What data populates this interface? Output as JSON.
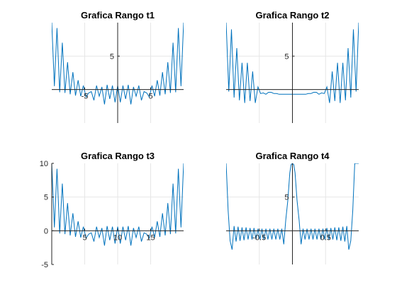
{
  "chart_data": [
    {
      "type": "line",
      "title": "Grafica Rango t1",
      "xlim": [
        -10,
        10
      ],
      "ylim": [
        -5,
        10
      ],
      "axes_through_origin": true,
      "x_ticks": [
        -5,
        5
      ],
      "y_ticks": [
        5
      ],
      "grid": true,
      "series_color": "#0072BD",
      "series": [
        {
          "x": [
            -10,
            -9.6,
            -9.2,
            -8.8,
            -8.4,
            -8.0,
            -7.6,
            -7.2,
            -6.8,
            -6.4,
            -6.0,
            -5.6,
            -5.2,
            -4.8,
            -4.4,
            -4.0,
            -3.6,
            -3.2,
            -2.8,
            -2.4,
            -2.0,
            -1.6,
            -1.2,
            -0.8,
            -0.4,
            0,
            0.4,
            0.8,
            1.2,
            1.6,
            2.0,
            2.4,
            2.8,
            3.2,
            3.6,
            4.0,
            4.4,
            4.8,
            5.2,
            5.6,
            6.0,
            6.4,
            6.8,
            7.2,
            7.6,
            8.0,
            8.4,
            8.8,
            9.2,
            9.6,
            10
          ],
          "y": [
            10,
            0.5,
            9.2,
            -0.4,
            7.0,
            -0.5,
            4.1,
            -0.7,
            2.6,
            -0.9,
            1.4,
            -1.0,
            0.6,
            -1.1,
            -0.5,
            -0.3,
            -1.6,
            0.6,
            -1.0,
            0.4,
            -2.2,
            0.7,
            -1.4,
            0.6,
            -1.9,
            0.6,
            -1.9,
            0.6,
            -1.4,
            0.7,
            -2.2,
            0.4,
            -1.0,
            0.6,
            -1.6,
            -0.3,
            -0.5,
            -1.1,
            0.6,
            -1.0,
            1.4,
            -0.9,
            2.6,
            -0.7,
            4.1,
            -0.5,
            7.0,
            -0.4,
            9.2,
            0.5,
            10
          ]
        }
      ]
    },
    {
      "type": "line",
      "title": "Grafica Rango t2",
      "xlim": [
        -10,
        10
      ],
      "ylim": [
        -5,
        10
      ],
      "axes_through_origin": true,
      "x_ticks": [],
      "y_ticks": [
        5
      ],
      "grid": true,
      "series_color": "#0072BD",
      "series": [
        {
          "x": [
            -10,
            -9.6,
            -9.2,
            -8.8,
            -8.4,
            -8.0,
            -7.6,
            -7.2,
            -6.8,
            -6.4,
            -6.0,
            -5.6,
            -5.2,
            -4.8,
            -4.4,
            -4.0,
            -3.6,
            -3.2,
            -2.8,
            -2.4,
            -2.0,
            -1.6,
            -1.2,
            -0.8,
            -0.4,
            0,
            0.4,
            0.8,
            1.2,
            1.6,
            2.0,
            2.4,
            2.8,
            3.2,
            3.6,
            4.0,
            4.4,
            4.8,
            5.2,
            5.6,
            6.0,
            6.4,
            6.8,
            7.2,
            7.6,
            8.0,
            8.4,
            8.8,
            9.2,
            9.6,
            10
          ],
          "y": [
            10,
            -0.3,
            9.0,
            -1.2,
            6.2,
            -1.6,
            4.0,
            -2.0,
            4.0,
            -1.7,
            2.7,
            -2.0,
            0.4,
            -0.6,
            -0.5,
            -0.7,
            -0.4,
            -0.4,
            -0.6,
            -0.6,
            -0.7,
            -0.7,
            -0.7,
            -0.7,
            -0.7,
            -0.7,
            -0.7,
            -0.7,
            -0.7,
            -0.7,
            -0.7,
            -0.6,
            -0.6,
            -0.4,
            -0.4,
            -0.7,
            -0.5,
            -0.6,
            0.4,
            -2.0,
            2.7,
            -1.7,
            4.0,
            -2.0,
            4.0,
            -1.6,
            6.2,
            -1.2,
            9.0,
            -0.3,
            10
          ]
        }
      ]
    },
    {
      "type": "line",
      "title": "Grafica Rango t3",
      "xlim": [
        0,
        20
      ],
      "ylim": [
        -5,
        10
      ],
      "axes_through_origin": true,
      "x_ticks": [
        5,
        10,
        15
      ],
      "y_ticks": [
        -5,
        0,
        5,
        10
      ],
      "grid": true,
      "series_color": "#0072BD",
      "series": [
        {
          "x": [
            0,
            0.4,
            0.8,
            1.2,
            1.6,
            2.0,
            2.4,
            2.8,
            3.2,
            3.6,
            4.0,
            4.4,
            4.8,
            5.2,
            5.6,
            6.0,
            6.4,
            6.8,
            7.2,
            7.6,
            8.0,
            8.4,
            8.8,
            9.2,
            9.6,
            10,
            10.4,
            10.8,
            11.2,
            11.6,
            12.0,
            12.4,
            12.8,
            13.2,
            13.6,
            14.0,
            14.4,
            14.8,
            15.2,
            15.6,
            16.0,
            16.4,
            16.8,
            17.2,
            17.6,
            18.0,
            18.4,
            18.8,
            19.2,
            19.6,
            20
          ],
          "y": [
            10,
            0.5,
            9.2,
            -0.4,
            7.0,
            -0.5,
            4.1,
            -0.7,
            2.6,
            -0.9,
            1.4,
            -1.0,
            0.6,
            -1.1,
            -0.5,
            -0.3,
            -1.6,
            0.6,
            -1.0,
            0.4,
            -2.2,
            0.7,
            -1.4,
            0.6,
            -1.9,
            0.6,
            -1.9,
            0.6,
            -1.4,
            0.7,
            -2.2,
            0.4,
            -1.0,
            0.6,
            -1.6,
            -0.3,
            -0.5,
            -1.1,
            0.6,
            -1.0,
            1.4,
            -0.9,
            2.6,
            -0.7,
            4.1,
            -0.5,
            7.0,
            -0.4,
            9.2,
            0.5,
            10
          ]
        }
      ]
    },
    {
      "type": "line",
      "title": "Grafica Rango t4",
      "xlim": [
        -1,
        1
      ],
      "ylim": [
        -5,
        10
      ],
      "axes_through_origin": true,
      "x_ticks": [
        -0.5,
        0.5
      ],
      "y_ticks": [
        5
      ],
      "grid": true,
      "series_color": "#0072BD",
      "series": [
        {
          "x": [
            -1.0,
            -0.97,
            -0.94,
            -0.91,
            -0.88,
            -0.85,
            -0.82,
            -0.79,
            -0.76,
            -0.73,
            -0.7,
            -0.67,
            -0.64,
            -0.61,
            -0.58,
            -0.55,
            -0.52,
            -0.49,
            -0.46,
            -0.43,
            -0.4,
            -0.37,
            -0.34,
            -0.31,
            -0.28,
            -0.25,
            -0.22,
            -0.19,
            -0.16,
            -0.13,
            -0.1,
            -0.07,
            -0.04,
            -0.02,
            0,
            0.02,
            0.04,
            0.07,
            0.1,
            0.13,
            0.16,
            0.19,
            0.22,
            0.25,
            0.28,
            0.31,
            0.34,
            0.37,
            0.4,
            0.43,
            0.46,
            0.49,
            0.52,
            0.55,
            0.58,
            0.61,
            0.64,
            0.67,
            0.7,
            0.73,
            0.76,
            0.79,
            0.82,
            0.85,
            0.88,
            0.91,
            0.94,
            0.97,
            1.0
          ],
          "y": [
            10,
            3.0,
            -1.5,
            -2.8,
            0.7,
            -1.6,
            0.6,
            -1.5,
            0.5,
            -1.4,
            0.5,
            -1.3,
            0.4,
            -1.3,
            0.4,
            -1.3,
            0.3,
            -1.3,
            0.3,
            -1.3,
            0.3,
            -1.3,
            0.3,
            -1.3,
            0.3,
            -1.3,
            0.3,
            -1.3,
            0.3,
            -2.0,
            1.6,
            4.5,
            8.6,
            9.8,
            10,
            9.8,
            8.6,
            4.5,
            1.6,
            -2.0,
            0.3,
            -1.3,
            0.3,
            -1.3,
            0.3,
            -1.3,
            0.3,
            -1.3,
            0.3,
            -1.3,
            0.3,
            -1.3,
            0.4,
            -1.3,
            0.4,
            -1.3,
            0.5,
            -1.4,
            0.5,
            -1.5,
            0.6,
            -1.6,
            0.7,
            -2.8,
            -1.5,
            3.0,
            10,
            10,
            10
          ]
        }
      ]
    }
  ]
}
